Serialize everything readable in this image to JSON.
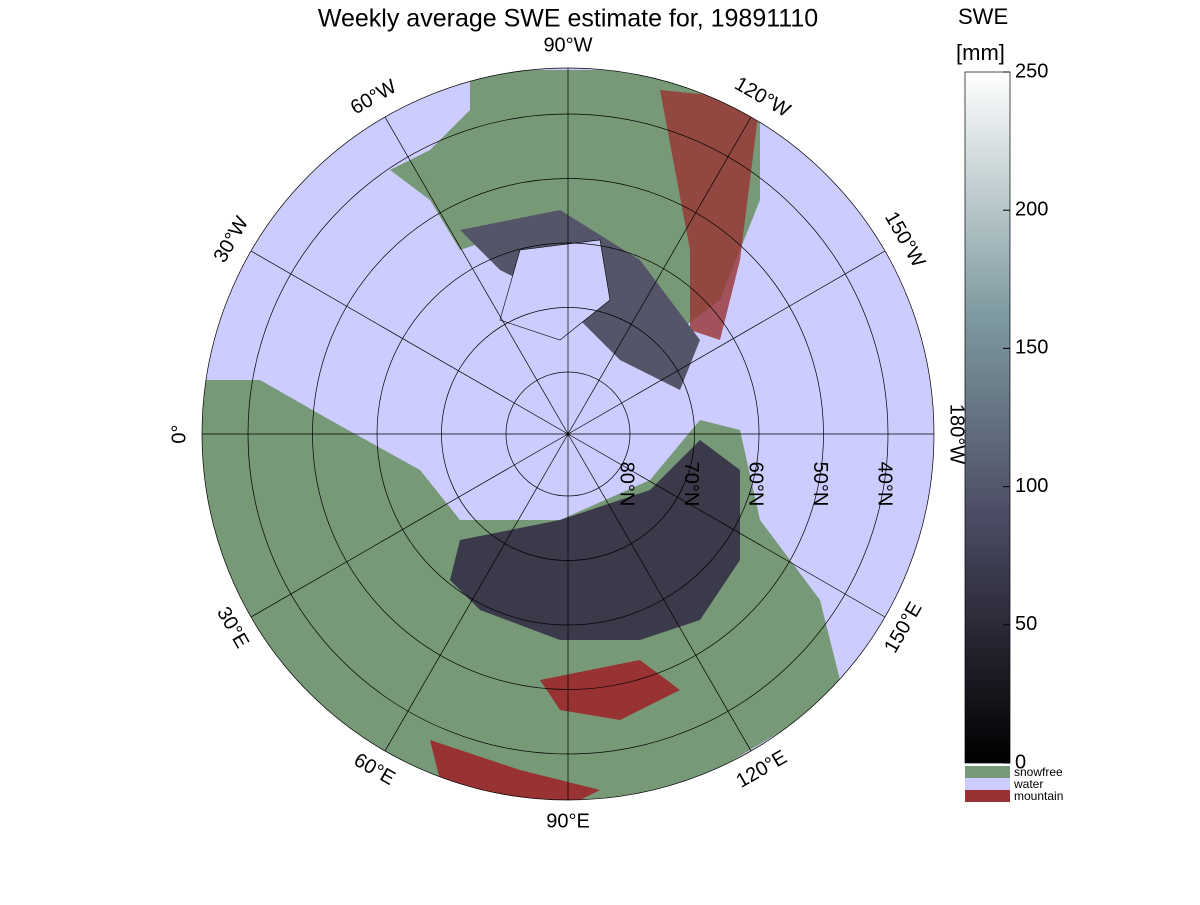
{
  "title": "Weekly average SWE estimate for, 19891110",
  "colorbar": {
    "label": "SWE",
    "unit": "[mm]",
    "lim": [
      0,
      250
    ],
    "ticks": [
      0,
      50,
      100,
      150,
      200,
      250
    ]
  },
  "legend": [
    {
      "name": "snowfree",
      "color": "#779977"
    },
    {
      "name": "water",
      "color": "#ccccff"
    },
    {
      "name": "mountain",
      "color": "#993333"
    }
  ],
  "map": {
    "longitude_labels": [
      "90°W",
      "120°W",
      "150°W",
      "180°W",
      "150°E",
      "120°E",
      "90°E",
      "60°E",
      "30°E",
      "0°",
      "30°W",
      "60°W"
    ],
    "latitude_labels": [
      "80°N",
      "70°N",
      "60°N",
      "50°N",
      "40°N"
    ]
  }
}
